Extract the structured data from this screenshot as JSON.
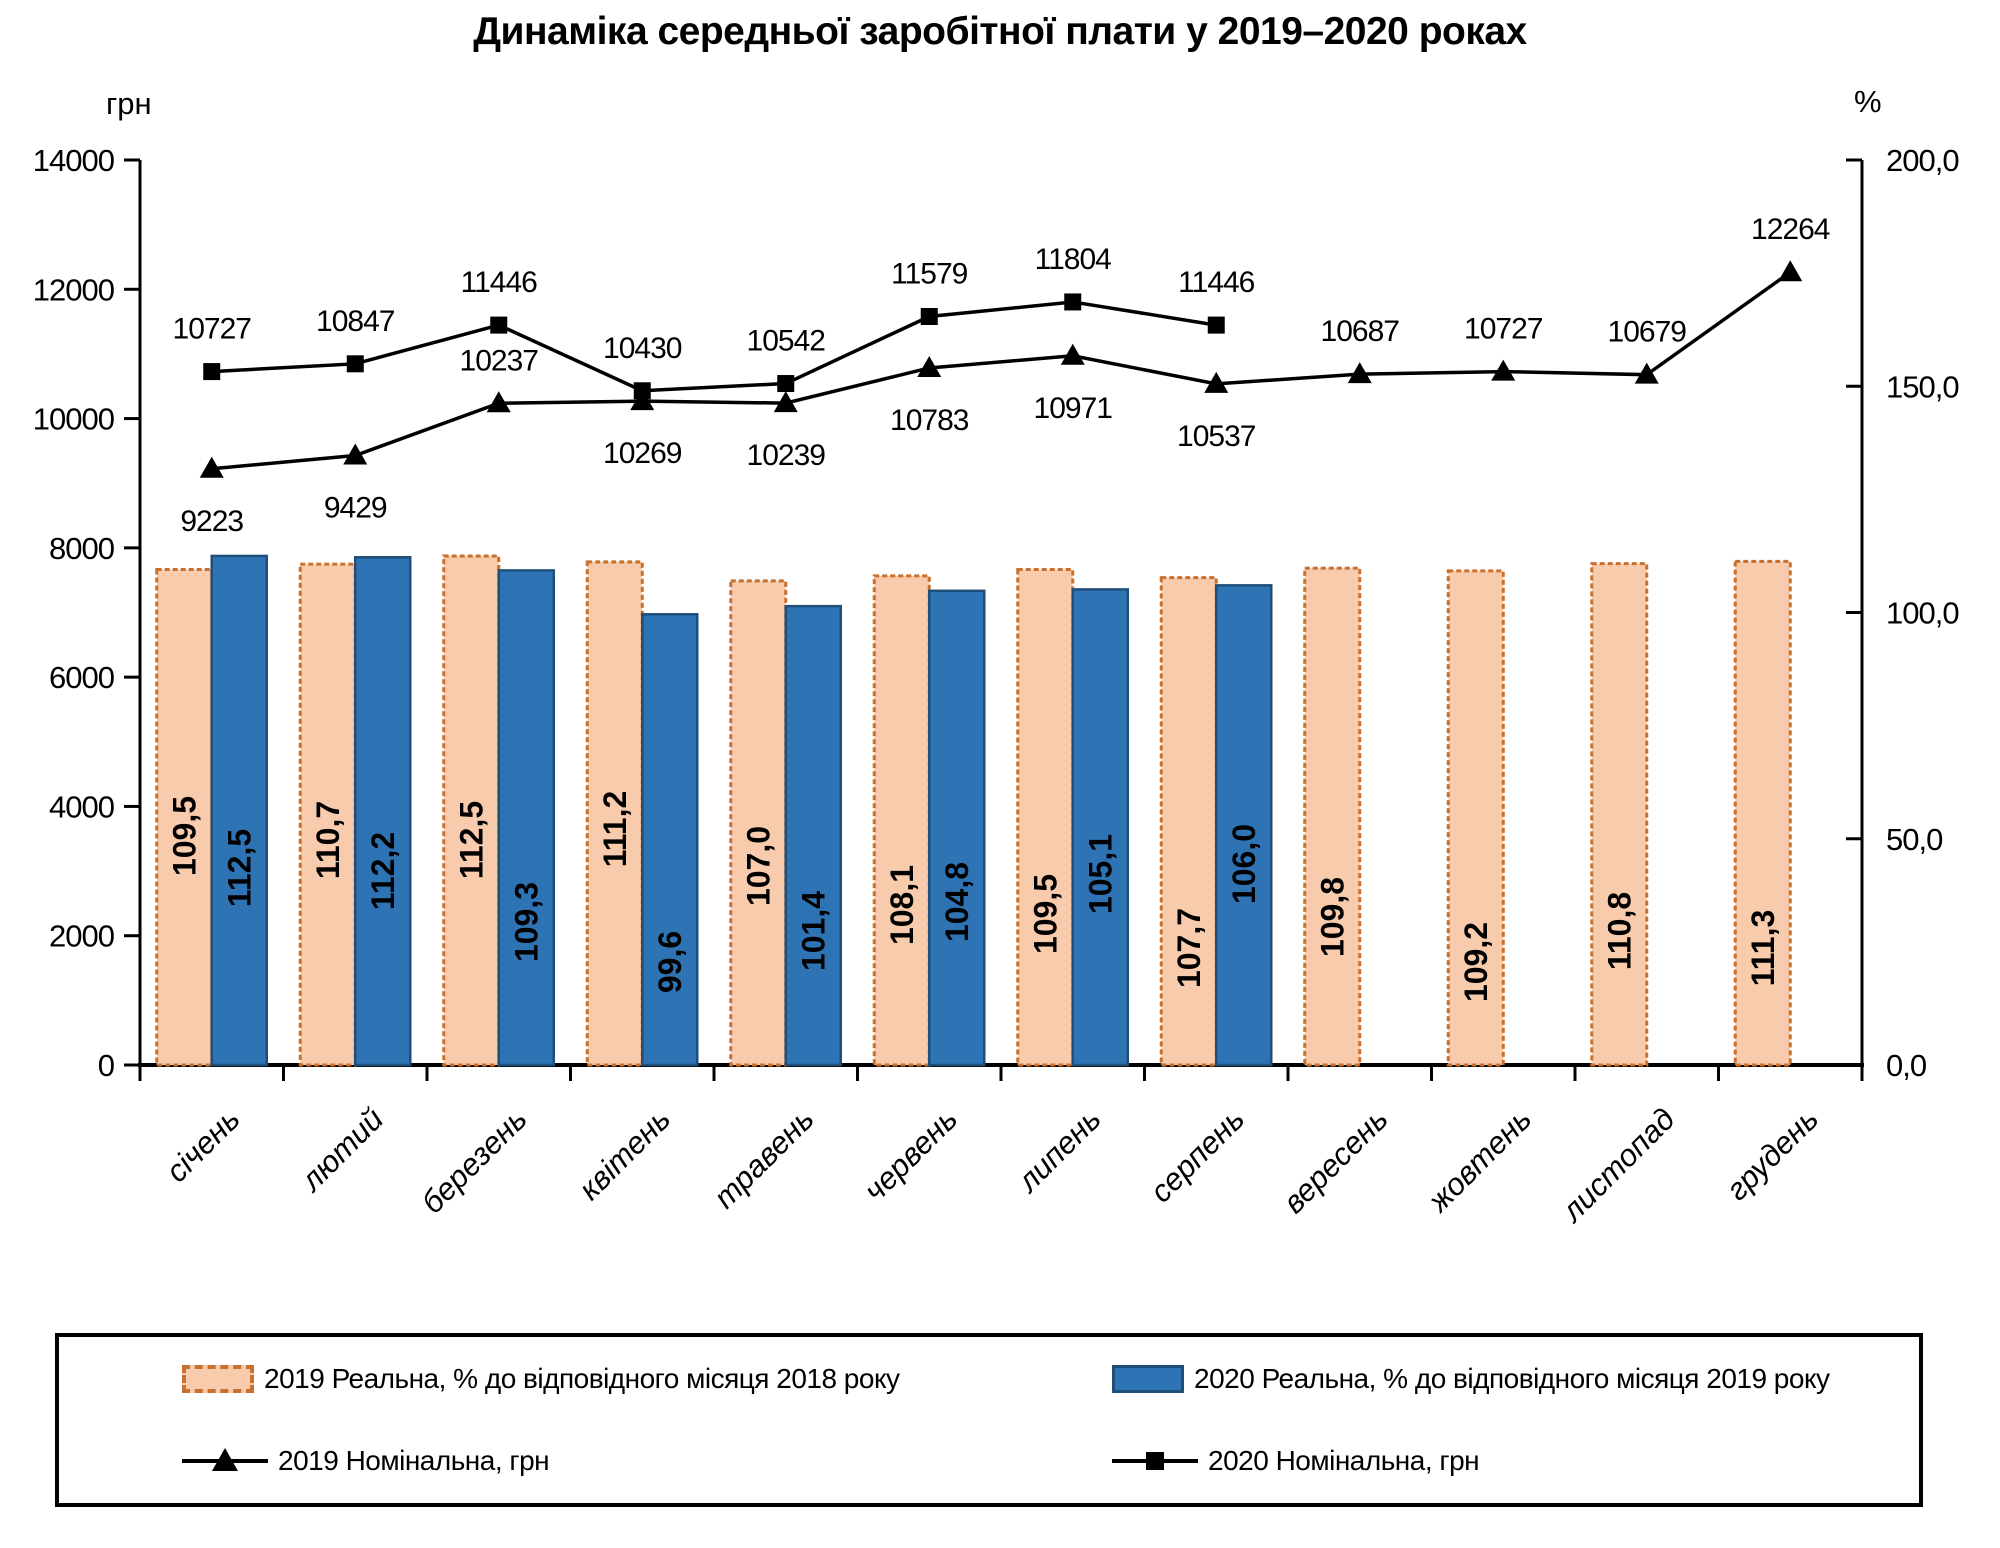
{
  "title": "Динаміка середньої заробітної плати у 2019–2020 роках",
  "legend": {
    "items": [
      {
        "label": "2019 Реальна, % до відповідного місяця 2018 року"
      },
      {
        "label": "2020 Реальна, % до відповідного місяця 2019 року"
      },
      {
        "label": "2019 Номінальна, грн"
      },
      {
        "label": "2020 Номінальна, грн"
      }
    ]
  },
  "chart_data": {
    "type": "combo-bar-line",
    "title": "Динаміка середньої заробітної плати у 2019–2020 роках",
    "categories": [
      "січень",
      "лютий",
      "березень",
      "квітень",
      "травень",
      "червень",
      "липень",
      "серпень",
      "вересень",
      "жовтень",
      "листопад",
      "грудень"
    ],
    "left_axis": {
      "unit": "грн",
      "min": 0,
      "max": 14000,
      "tick_values": [
        0,
        2000,
        4000,
        6000,
        8000,
        10000,
        12000,
        14000
      ],
      "tick_labels": [
        "0",
        "2000",
        "4000",
        "6000",
        "8000",
        "10000",
        "12000",
        "14000"
      ]
    },
    "right_axis": {
      "unit": "%",
      "min": 0,
      "max": 200,
      "tick_values": [
        0,
        50,
        100,
        150,
        200
      ],
      "tick_labels": [
        "0,0",
        "50,0",
        "100,0",
        "150,0",
        "200,0"
      ]
    },
    "series": [
      {
        "name": "2019 Реальна, % до відповідного місяця 2018 року",
        "type": "bar",
        "axis": "right",
        "fill": "#F8CBAD",
        "border": "#C9702E",
        "values": [
          109.5,
          110.7,
          112.5,
          111.2,
          107.0,
          108.1,
          109.5,
          107.7,
          109.8,
          109.2,
          110.8,
          111.3
        ],
        "labels": [
          "109,5",
          "110,7",
          "112,5",
          "111,2",
          "107,0",
          "108,1",
          "109,5",
          "107,7",
          "109,8",
          "109,2",
          "110,8",
          "111,3"
        ]
      },
      {
        "name": "2020 Реальна, % до відповідного місяця 2019 року",
        "type": "bar",
        "axis": "right",
        "fill": "#2E74B5",
        "border": "#1F4E79",
        "values": [
          112.5,
          112.2,
          109.3,
          99.6,
          101.4,
          104.8,
          105.1,
          106.0
        ],
        "labels": [
          "112,5",
          "112,2",
          "109,3",
          "99,6",
          "101,4",
          "104,8",
          "105,1",
          "106,0"
        ]
      },
      {
        "name": "2019 Номінальна, грн",
        "type": "line",
        "axis": "left",
        "marker": "triangle",
        "color": "#000000",
        "values": [
          9223,
          9429,
          10237,
          10269,
          10239,
          10783,
          10971,
          10537,
          10687,
          10727,
          10679,
          12264
        ],
        "labels": [
          "9223",
          "9429",
          "10237",
          "10269",
          "10239",
          "10783",
          "10971",
          "10537",
          "10687",
          "10727",
          "10679",
          "12264"
        ],
        "label_positions": [
          "below",
          "below",
          "above",
          "below",
          "below",
          "below",
          "below",
          "below",
          "above",
          "above",
          "above",
          "above"
        ]
      },
      {
        "name": "2020 Номінальна, грн",
        "type": "line",
        "axis": "left",
        "marker": "square",
        "color": "#000000",
        "values": [
          10727,
          10847,
          11446,
          10430,
          10542,
          11579,
          11804,
          11446
        ],
        "labels": [
          "10727",
          "10847",
          "11446",
          "10430",
          "10542",
          "11579",
          "11804",
          "11446"
        ],
        "label_positions": [
          "above",
          "above",
          "above",
          "above",
          "above",
          "above",
          "above",
          "above"
        ]
      }
    ]
  }
}
